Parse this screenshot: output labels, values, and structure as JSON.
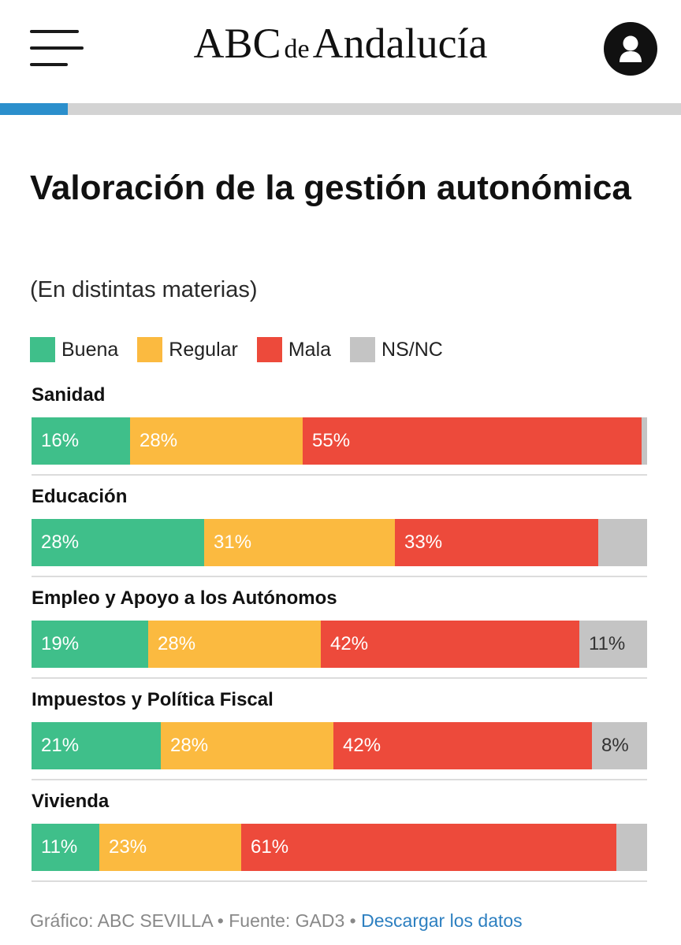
{
  "header": {
    "logo_brand": "ABC",
    "logo_connector": "de",
    "logo_region": "Andalucía",
    "menu_icon": "hamburger-menu-icon",
    "user_icon": "user-account-icon",
    "reading_progress": 0.1
  },
  "colors": {
    "Buena": "#3fbf8a",
    "Regular": "#fbba40",
    "Mala": "#ed4a3b",
    "NS/NC": "#c4c4c4"
  },
  "chart_data": {
    "type": "bar",
    "orientation": "horizontal",
    "stacked": true,
    "title": "Valoración de la gestión autonómica",
    "subtitle": "(En distintas materias)",
    "legend": [
      "Buena",
      "Regular",
      "Mala",
      "NS/NC"
    ],
    "legend_position": "top-left",
    "xlim": [
      0,
      100
    ],
    "categories": [
      "Sanidad",
      "Educación",
      "Empleo y Apoyo a los Autónomos",
      "Impuestos y Política Fiscal",
      "Vivienda"
    ],
    "series": [
      {
        "name": "Buena",
        "values": [
          16,
          28,
          19,
          21,
          11
        ]
      },
      {
        "name": "Regular",
        "values": [
          28,
          31,
          28,
          28,
          23
        ]
      },
      {
        "name": "Mala",
        "values": [
          55,
          33,
          42,
          42,
          61
        ]
      },
      {
        "name": "NS/NC",
        "values": [
          1,
          8,
          11,
          8,
          5
        ]
      }
    ],
    "value_labels": [
      [
        "16%",
        "28%",
        "55%",
        ""
      ],
      [
        "28%",
        "31%",
        "33%",
        ""
      ],
      [
        "19%",
        "28%",
        "42%",
        "11%"
      ],
      [
        "21%",
        "28%",
        "42%",
        "8%"
      ],
      [
        "11%",
        "23%",
        "61%",
        ""
      ]
    ]
  },
  "footer": {
    "credit": "Gráfico: ABC SEVILLA",
    "separator": "•",
    "source": "Fuente: GAD3",
    "download_link": "Descargar los datos"
  }
}
